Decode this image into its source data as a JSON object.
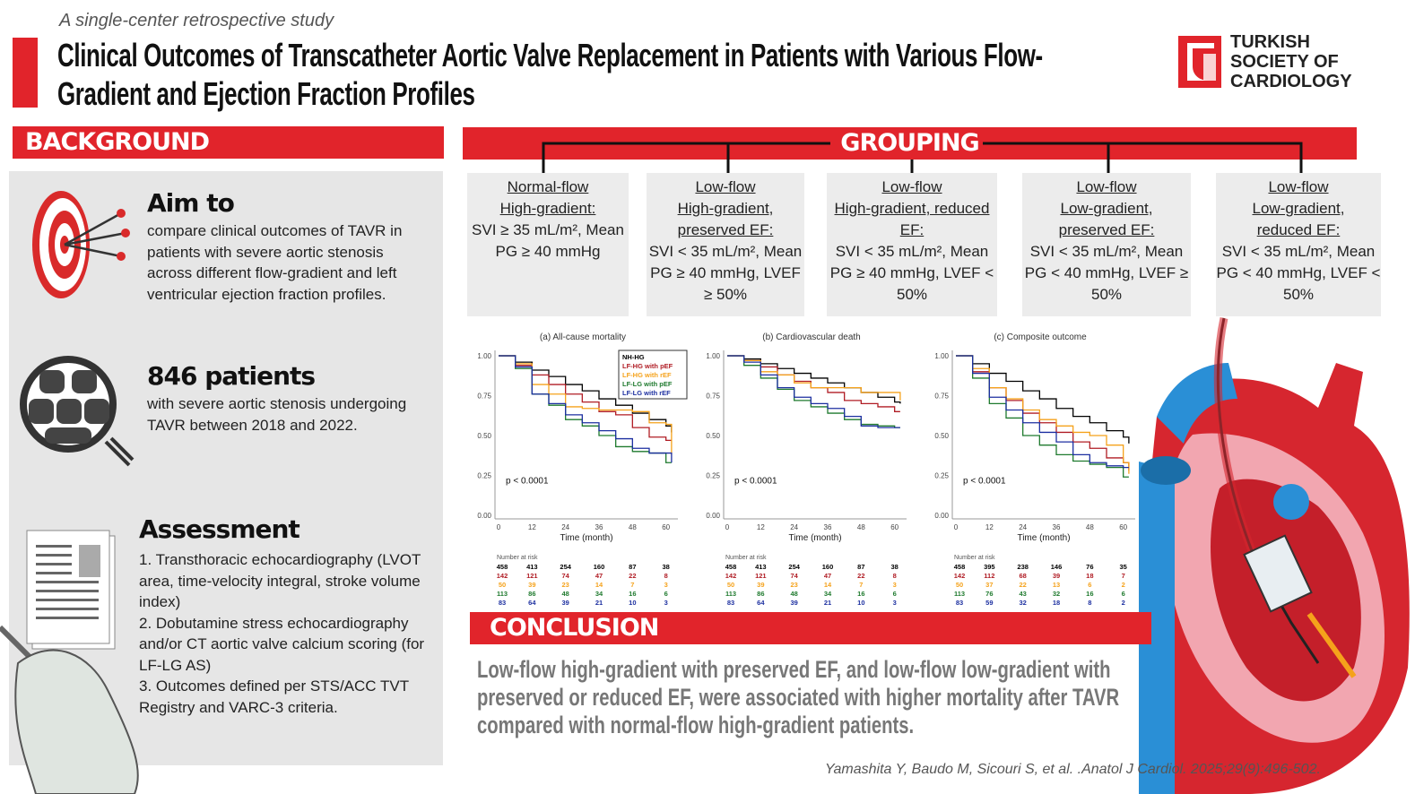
{
  "header": {
    "subtitle": "A single-center retrospective study",
    "title": "Clinical Outcomes of Transcatheter Aortic Valve Replacement in Patients with Various Flow-Gradient and Ejection Fraction Profiles",
    "logo_text": [
      "TURKISH",
      "SOCIETY OF",
      "CARDIOLOGY"
    ],
    "accent": "#e1242b"
  },
  "background": {
    "heading": "BACKGROUND",
    "aim": {
      "title": "Aim to",
      "text": "compare clinical outcomes of TAVR in patients with severe aortic stenosis across different flow-gradient and left ventricular ejection fraction profiles."
    },
    "patients": {
      "title": "846 patients",
      "text": "with severe aortic stenosis undergoing TAVR between 2018 and 2022."
    },
    "assessment": {
      "title": "Assessment",
      "items": [
        "1. Transthoracic echocardiography (LVOT area, time-velocity integral, stroke volume index)",
        "2. Dobutamine stress echocardiography and/or CT aortic valve calcium scoring (for LF-LG AS)",
        "3. Outcomes defined per STS/ACC TVT Registry and VARC-3 criteria."
      ]
    }
  },
  "grouping": {
    "heading": "GROUPING",
    "groups": [
      {
        "name": [
          "Normal-flow",
          "High-gradient:"
        ],
        "criteria": "SVI ≥ 35 mL/m², Mean PG ≥ 40 mmHg"
      },
      {
        "name": [
          "Low-flow",
          "High-gradient,",
          "preserved EF:"
        ],
        "criteria": "SVI < 35 mL/m², Mean PG ≥ 40 mmHg, LVEF ≥ 50%"
      },
      {
        "name": [
          "Low-flow",
          "High-gradient, reduced",
          "EF:"
        ],
        "criteria": "SVI < 35 mL/m², Mean PG ≥ 40 mmHg, LVEF < 50%"
      },
      {
        "name": [
          "Low-flow",
          "Low-gradient,",
          "preserved EF:"
        ],
        "criteria": "SVI < 35 mL/m², Mean PG < 40 mmHg, LVEF ≥ 50%"
      },
      {
        "name": [
          "Low-flow",
          "Low-gradient,",
          "reduced EF:"
        ],
        "criteria": "SVI < 35 mL/m², Mean PG < 40 mmHg, LVEF < 50%"
      }
    ]
  },
  "chart_data": [
    {
      "type": "line",
      "title": "(a) All-cause mortality",
      "xlabel": "Time (month)",
      "ylabel": "",
      "xlim": [
        0,
        63
      ],
      "ylim": [
        0,
        1
      ],
      "xticks": [
        "0",
        "12",
        "24",
        "36",
        "48",
        "60"
      ],
      "yticks": [
        "0.00",
        "0.25",
        "0.50",
        "0.75",
        "1.00"
      ],
      "annotation": "p < 0.0001",
      "legend": "top-right",
      "risk_label": "Number at risk",
      "x": [
        0,
        6,
        12,
        18,
        24,
        30,
        36,
        42,
        48,
        54,
        60,
        62
      ],
      "series": [
        {
          "name": "NH-HG",
          "color": "#000000",
          "values": [
            1,
            0.96,
            0.91,
            0.87,
            0.82,
            0.78,
            0.73,
            0.69,
            0.64,
            0.6,
            0.56,
            0.52
          ],
          "at_risk": [
            "458",
            "413",
            "254",
            "160",
            "87",
            "38"
          ]
        },
        {
          "name": "LF-HG with pEF",
          "color": "#b01c24",
          "values": [
            1,
            0.94,
            0.88,
            0.82,
            0.76,
            0.71,
            0.65,
            0.63,
            0.55,
            0.49,
            0.47,
            0.47
          ],
          "at_risk": [
            "142",
            "121",
            "74",
            "47",
            "22",
            "8"
          ]
        },
        {
          "name": "LF-HG with rEF",
          "color": "#f5a21b",
          "values": [
            1,
            0.95,
            0.82,
            0.76,
            0.68,
            0.67,
            0.66,
            0.66,
            0.65,
            0.58,
            0.57,
            0.38
          ],
          "at_risk": [
            "50",
            "39",
            "23",
            "14",
            "7",
            "3"
          ]
        },
        {
          "name": "LF-LG with pEF",
          "color": "#1f7a2e",
          "values": [
            1,
            0.92,
            0.76,
            0.69,
            0.6,
            0.56,
            0.5,
            0.43,
            0.4,
            0.39,
            0.33,
            0.33
          ],
          "at_risk": [
            "113",
            "86",
            "48",
            "34",
            "16",
            "6"
          ]
        },
        {
          "name": "LF-LG with rEF",
          "color": "#1c2fa0",
          "values": [
            1,
            0.93,
            0.76,
            0.7,
            0.63,
            0.58,
            0.53,
            0.48,
            0.42,
            0.39,
            0.39,
            0.33
          ],
          "at_risk": [
            "83",
            "64",
            "39",
            "21",
            "10",
            "3"
          ]
        }
      ]
    },
    {
      "type": "line",
      "title": "(b) Cardiovascular death",
      "xlabel": "Time (month)",
      "ylabel": "",
      "xlim": [
        0,
        63
      ],
      "ylim": [
        0,
        1
      ],
      "xticks": [
        "0",
        "12",
        "24",
        "36",
        "48",
        "60"
      ],
      "yticks": [
        "0.00",
        "0.25",
        "0.50",
        "0.75",
        "1.00"
      ],
      "annotation": "p < 0.0001",
      "risk_label": "Number at risk",
      "x": [
        0,
        6,
        12,
        18,
        24,
        30,
        36,
        42,
        48,
        54,
        60,
        62
      ],
      "series": [
        {
          "color": "#000000",
          "values": [
            1,
            0.98,
            0.95,
            0.92,
            0.89,
            0.86,
            0.83,
            0.8,
            0.77,
            0.74,
            0.71,
            0.7
          ],
          "at_risk": [
            "458",
            "413",
            "254",
            "160",
            "87",
            "38"
          ]
        },
        {
          "color": "#b01c24",
          "values": [
            1,
            0.97,
            0.93,
            0.88,
            0.84,
            0.8,
            0.77,
            0.72,
            0.7,
            0.68,
            0.65,
            0.65
          ],
          "at_risk": [
            "142",
            "121",
            "74",
            "47",
            "22",
            "8"
          ]
        },
        {
          "color": "#f5a21b",
          "values": [
            1,
            0.97,
            0.9,
            0.88,
            0.83,
            0.8,
            0.8,
            0.8,
            0.77,
            0.77,
            0.77,
            0.72
          ],
          "at_risk": [
            "50",
            "39",
            "23",
            "14",
            "7",
            "3"
          ]
        },
        {
          "color": "#1f7a2e",
          "values": [
            1,
            0.94,
            0.86,
            0.79,
            0.72,
            0.68,
            0.64,
            0.6,
            0.57,
            0.56,
            0.55,
            0.55
          ],
          "at_risk": [
            "113",
            "86",
            "48",
            "34",
            "16",
            "6"
          ]
        },
        {
          "color": "#1c2fa0",
          "values": [
            1,
            0.96,
            0.88,
            0.8,
            0.74,
            0.7,
            0.67,
            0.62,
            0.56,
            0.55,
            0.55,
            0.55
          ],
          "at_risk": [
            "83",
            "64",
            "39",
            "21",
            "10",
            "3"
          ]
        }
      ]
    },
    {
      "type": "line",
      "title": "(c) Composite outcome",
      "xlabel": "Time (month)",
      "ylabel": "",
      "xlim": [
        0,
        63
      ],
      "ylim": [
        0,
        1
      ],
      "xticks": [
        "0",
        "12",
        "24",
        "36",
        "48",
        "60"
      ],
      "yticks": [
        "0.00",
        "0.25",
        "0.50",
        "0.75",
        "1.00"
      ],
      "annotation": "p < 0.0001",
      "risk_label": "Number at risk",
      "x": [
        0,
        6,
        12,
        18,
        24,
        30,
        36,
        42,
        48,
        54,
        60,
        62
      ],
      "series": [
        {
          "color": "#000000",
          "values": [
            1,
            0.95,
            0.89,
            0.84,
            0.78,
            0.73,
            0.67,
            0.62,
            0.58,
            0.53,
            0.49,
            0.45
          ],
          "at_risk": [
            "458",
            "395",
            "238",
            "146",
            "76",
            "35"
          ]
        },
        {
          "color": "#b01c24",
          "values": [
            1,
            0.9,
            0.8,
            0.72,
            0.64,
            0.58,
            0.52,
            0.46,
            0.42,
            0.36,
            0.33,
            0.28
          ],
          "at_risk": [
            "142",
            "112",
            "68",
            "39",
            "18",
            "7"
          ]
        },
        {
          "color": "#f5a21b",
          "values": [
            1,
            0.92,
            0.8,
            0.73,
            0.66,
            0.6,
            0.56,
            0.52,
            0.5,
            0.44,
            0.33,
            0.26
          ],
          "at_risk": [
            "50",
            "37",
            "22",
            "13",
            "6",
            "2"
          ]
        },
        {
          "color": "#1f7a2e",
          "values": [
            1,
            0.86,
            0.7,
            0.61,
            0.5,
            0.44,
            0.38,
            0.34,
            0.32,
            0.3,
            0.24,
            0.24
          ],
          "at_risk": [
            "113",
            "76",
            "43",
            "32",
            "16",
            "6"
          ]
        },
        {
          "color": "#1c2fa0",
          "values": [
            1,
            0.89,
            0.74,
            0.66,
            0.58,
            0.52,
            0.46,
            0.38,
            0.33,
            0.31,
            0.3,
            0.3
          ],
          "at_risk": [
            "83",
            "59",
            "32",
            "18",
            "8",
            "2"
          ]
        }
      ]
    }
  ],
  "conclusion": {
    "heading": "CONCLUSION",
    "text": "Low-flow high-gradient with preserved EF, and low-flow low-gradient with preserved or reduced EF, were associated with higher mortality after TAVR compared with normal-flow high-gradient patients."
  },
  "citation": "Yamashita Y, Baudo M, Sicouri S, et al. .Anatol J Cardiol. 2025;29(9):496-502."
}
